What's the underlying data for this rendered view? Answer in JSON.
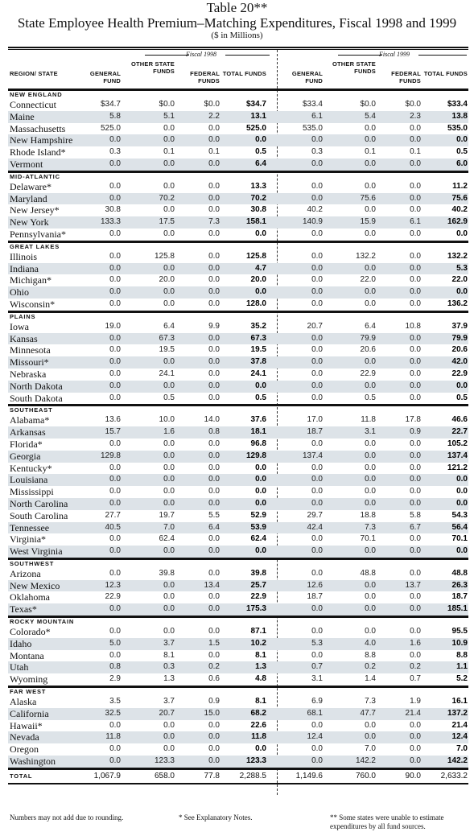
{
  "title": "Table 20**",
  "subtitle": "State Employee Health Premium–Matching Expenditures, Fiscal 1998 and 1999",
  "unit": "($ in Millions)",
  "fiscal_labels": [
    "Fiscal 1998",
    "Fiscal 1999"
  ],
  "headers": {
    "region": "REGION/ STATE",
    "cols": [
      "GENERAL FUND",
      "OTHER STATE FUNDS",
      "FEDERAL FUNDS",
      "TOTAL FUNDS",
      "GENERAL FUND",
      "OTHER STATE FUNDS",
      "FEDERAL FUNDS",
      "TOTAL FUNDS"
    ]
  },
  "regions": [
    {
      "name": "NEW ENGLAND",
      "rows": [
        {
          "state": "Connecticut",
          "v": [
            "$34.7",
            "$0.0",
            "$0.0",
            "$34.7",
            "$33.4",
            "$0.0",
            "$0.0",
            "$33.4"
          ]
        },
        {
          "state": "Maine",
          "v": [
            "5.8",
            "5.1",
            "2.2",
            "13.1",
            "6.1",
            "5.4",
            "2.3",
            "13.8"
          ]
        },
        {
          "state": "Massachusetts",
          "v": [
            "525.0",
            "0.0",
            "0.0",
            "525.0",
            "535.0",
            "0.0",
            "0.0",
            "535.0"
          ]
        },
        {
          "state": "New Hampshire",
          "v": [
            "0.0",
            "0.0",
            "0.0",
            "0.0",
            "0.0",
            "0.0",
            "0.0",
            "0.0"
          ]
        },
        {
          "state": "Rhode Island*",
          "v": [
            "0.3",
            "0.1",
            "0.1",
            "0.5",
            "0.3",
            "0.1",
            "0.1",
            "0.5"
          ]
        },
        {
          "state": "Vermont",
          "v": [
            "0.0",
            "0.0",
            "0.0",
            "6.4",
            "0.0",
            "0.0",
            "0.0",
            "6.0"
          ]
        }
      ]
    },
    {
      "name": "MID-ATLANTIC",
      "rows": [
        {
          "state": "Delaware*",
          "v": [
            "0.0",
            "0.0",
            "0.0",
            "13.3",
            "0.0",
            "0.0",
            "0.0",
            "11.2"
          ]
        },
        {
          "state": "Maryland",
          "v": [
            "0.0",
            "70.2",
            "0.0",
            "70.2",
            "0.0",
            "75.6",
            "0.0",
            "75.6"
          ]
        },
        {
          "state": "New Jersey*",
          "v": [
            "30.8",
            "0.0",
            "0.0",
            "30.8",
            "40.2",
            "0.0",
            "0.0",
            "40.2"
          ]
        },
        {
          "state": "New York",
          "v": [
            "133.3",
            "17.5",
            "7.3",
            "158.1",
            "140.9",
            "15.9",
            "6.1",
            "162.9"
          ]
        },
        {
          "state": "Pennsylvania*",
          "v": [
            "0.0",
            "0.0",
            "0.0",
            "0.0",
            "0.0",
            "0.0",
            "0.0",
            "0.0"
          ]
        }
      ]
    },
    {
      "name": "GREAT LAKES",
      "rows": [
        {
          "state": "Illinois",
          "v": [
            "0.0",
            "125.8",
            "0.0",
            "125.8",
            "0.0",
            "132.2",
            "0.0",
            "132.2"
          ]
        },
        {
          "state": "Indiana",
          "v": [
            "0.0",
            "0.0",
            "0.0",
            "4.7",
            "0.0",
            "0.0",
            "0.0",
            "5.3"
          ]
        },
        {
          "state": "Michigan*",
          "v": [
            "0.0",
            "20.0",
            "0.0",
            "20.0",
            "0.0",
            "22.0",
            "0.0",
            "22.0"
          ]
        },
        {
          "state": "Ohio",
          "v": [
            "0.0",
            "0.0",
            "0.0",
            "0.0",
            "0.0",
            "0.0",
            "0.0",
            "0.0"
          ]
        },
        {
          "state": "Wisconsin*",
          "v": [
            "0.0",
            "0.0",
            "0.0",
            "128.0",
            "0.0",
            "0.0",
            "0.0",
            "136.2"
          ]
        }
      ]
    },
    {
      "name": "PLAINS",
      "rows": [
        {
          "state": "Iowa",
          "v": [
            "19.0",
            "6.4",
            "9.9",
            "35.2",
            "20.7",
            "6.4",
            "10.8",
            "37.9"
          ]
        },
        {
          "state": "Kansas",
          "v": [
            "0.0",
            "67.3",
            "0.0",
            "67.3",
            "0.0",
            "79.9",
            "0.0",
            "79.9"
          ]
        },
        {
          "state": "Minnesota",
          "v": [
            "0.0",
            "19.5",
            "0.0",
            "19.5",
            "0.0",
            "20.6",
            "0.0",
            "20.6"
          ]
        },
        {
          "state": "Missouri*",
          "v": [
            "0.0",
            "0.0",
            "0.0",
            "37.8",
            "0.0",
            "0.0",
            "0.0",
            "42.0"
          ]
        },
        {
          "state": "Nebraska",
          "v": [
            "0.0",
            "24.1",
            "0.0",
            "24.1",
            "0.0",
            "22.9",
            "0.0",
            "22.9"
          ]
        },
        {
          "state": "North Dakota",
          "v": [
            "0.0",
            "0.0",
            "0.0",
            "0.0",
            "0.0",
            "0.0",
            "0.0",
            "0.0"
          ]
        },
        {
          "state": "South Dakota",
          "v": [
            "0.0",
            "0.5",
            "0.0",
            "0.5",
            "0.0",
            "0.5",
            "0.0",
            "0.5"
          ]
        }
      ]
    },
    {
      "name": "SOUTHEAST",
      "rows": [
        {
          "state": "Alabama*",
          "v": [
            "13.6",
            "10.0",
            "14.0",
            "37.6",
            "17.0",
            "11.8",
            "17.8",
            "46.6"
          ]
        },
        {
          "state": "Arkansas",
          "v": [
            "15.7",
            "1.6",
            "0.8",
            "18.1",
            "18.7",
            "3.1",
            "0.9",
            "22.7"
          ]
        },
        {
          "state": "Florida*",
          "v": [
            "0.0",
            "0.0",
            "0.0",
            "96.8",
            "0.0",
            "0.0",
            "0.0",
            "105.2"
          ]
        },
        {
          "state": "Georgia",
          "v": [
            "129.8",
            "0.0",
            "0.0",
            "129.8",
            "137.4",
            "0.0",
            "0.0",
            "137.4"
          ]
        },
        {
          "state": "Kentucky*",
          "v": [
            "0.0",
            "0.0",
            "0.0",
            "0.0",
            "0.0",
            "0.0",
            "0.0",
            "121.2"
          ]
        },
        {
          "state": "Louisiana",
          "v": [
            "0.0",
            "0.0",
            "0.0",
            "0.0",
            "0.0",
            "0.0",
            "0.0",
            "0.0"
          ]
        },
        {
          "state": "Mississippi",
          "v": [
            "0.0",
            "0.0",
            "0.0",
            "0.0",
            "0.0",
            "0.0",
            "0.0",
            "0.0"
          ]
        },
        {
          "state": "North Carolina",
          "v": [
            "0.0",
            "0.0",
            "0.0",
            "0.0",
            "0.0",
            "0.0",
            "0.0",
            "0.0"
          ]
        },
        {
          "state": "South Carolina",
          "v": [
            "27.7",
            "19.7",
            "5.5",
            "52.9",
            "29.7",
            "18.8",
            "5.8",
            "54.3"
          ]
        },
        {
          "state": "Tennessee",
          "v": [
            "40.5",
            "7.0",
            "6.4",
            "53.9",
            "42.4",
            "7.3",
            "6.7",
            "56.4"
          ]
        },
        {
          "state": "Virginia*",
          "v": [
            "0.0",
            "62.4",
            "0.0",
            "62.4",
            "0.0",
            "70.1",
            "0.0",
            "70.1"
          ]
        },
        {
          "state": "West Virginia",
          "v": [
            "0.0",
            "0.0",
            "0.0",
            "0.0",
            "0.0",
            "0.0",
            "0.0",
            "0.0"
          ]
        }
      ]
    },
    {
      "name": "SOUTHWEST",
      "rows": [
        {
          "state": "Arizona",
          "v": [
            "0.0",
            "39.8",
            "0.0",
            "39.8",
            "0.0",
            "48.8",
            "0.0",
            "48.8"
          ]
        },
        {
          "state": "New Mexico",
          "v": [
            "12.3",
            "0.0",
            "13.4",
            "25.7",
            "12.6",
            "0.0",
            "13.7",
            "26.3"
          ]
        },
        {
          "state": "Oklahoma",
          "v": [
            "22.9",
            "0.0",
            "0.0",
            "22.9",
            "18.7",
            "0.0",
            "0.0",
            "18.7"
          ]
        },
        {
          "state": "Texas*",
          "v": [
            "0.0",
            "0.0",
            "0.0",
            "175.3",
            "0.0",
            "0.0",
            "0.0",
            "185.1"
          ]
        }
      ]
    },
    {
      "name": "ROCKY MOUNTAIN",
      "rows": [
        {
          "state": "Colorado*",
          "v": [
            "0.0",
            "0.0",
            "0.0",
            "87.1",
            "0.0",
            "0.0",
            "0.0",
            "95.5"
          ]
        },
        {
          "state": "Idaho",
          "v": [
            "5.0",
            "3.7",
            "1.5",
            "10.2",
            "5.3",
            "4.0",
            "1.6",
            "10.9"
          ]
        },
        {
          "state": "Montana",
          "v": [
            "0.0",
            "8.1",
            "0.0",
            "8.1",
            "0.0",
            "8.8",
            "0.0",
            "8.8"
          ]
        },
        {
          "state": "Utah",
          "v": [
            "0.8",
            "0.3",
            "0.2",
            "1.3",
            "0.7",
            "0.2",
            "0.2",
            "1.1"
          ]
        },
        {
          "state": "Wyoming",
          "v": [
            "2.9",
            "1.3",
            "0.6",
            "4.8",
            "3.1",
            "1.4",
            "0.7",
            "5.2"
          ]
        }
      ]
    },
    {
      "name": "FAR WEST",
      "rows": [
        {
          "state": "Alaska",
          "v": [
            "3.5",
            "3.7",
            "0.9",
            "8.1",
            "6.9",
            "7.3",
            "1.9",
            "16.1"
          ]
        },
        {
          "state": "California",
          "v": [
            "32.5",
            "20.7",
            "15.0",
            "68.2",
            "68.1",
            "47.7",
            "21.4",
            "137.2"
          ]
        },
        {
          "state": "Hawaii*",
          "v": [
            "0.0",
            "0.0",
            "0.0",
            "22.6",
            "0.0",
            "0.0",
            "0.0",
            "21.4"
          ]
        },
        {
          "state": "Nevada",
          "v": [
            "11.8",
            "0.0",
            "0.0",
            "11.8",
            "12.4",
            "0.0",
            "0.0",
            "12.4"
          ]
        },
        {
          "state": "Oregon",
          "v": [
            "0.0",
            "0.0",
            "0.0",
            "0.0",
            "0.0",
            "7.0",
            "0.0",
            "7.0"
          ]
        },
        {
          "state": "Washington",
          "v": [
            "0.0",
            "123.3",
            "0.0",
            "123.3",
            "0.0",
            "142.2",
            "0.0",
            "142.2"
          ]
        }
      ]
    }
  ],
  "total": {
    "label": "TOTAL",
    "v": [
      "1,067.9",
      "658.0",
      "77.8",
      "2,288.5",
      "1,149.6",
      "760.0",
      "90.0",
      "2,633.2"
    ]
  },
  "footnotes": {
    "rounding": "Numbers may not add due to rounding.",
    "explanatory": "* See Explanatory Notes.",
    "estimate": "** Some states were unable to estimate expenditures by all fund sources."
  },
  "colors": {
    "stripe": "#dde3e8"
  }
}
